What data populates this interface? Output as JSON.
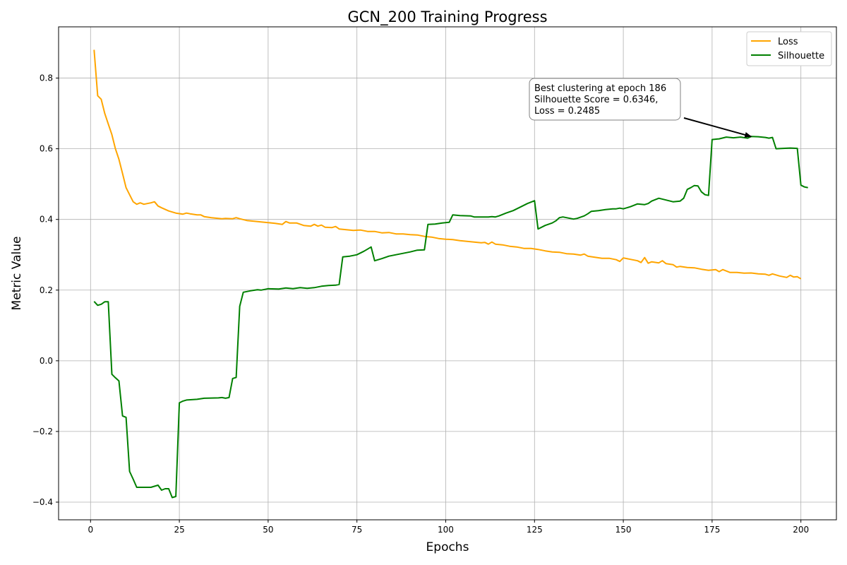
{
  "chart_data": {
    "type": "line",
    "title": "GCN_200 Training Progress",
    "xlabel": "Epochs",
    "ylabel": "Metric Value",
    "xlim": [
      -9,
      210
    ],
    "ylim": [
      -0.45,
      0.945
    ],
    "xticks": [
      0,
      25,
      50,
      75,
      100,
      125,
      150,
      175,
      200
    ],
    "yticks": [
      -0.4,
      -0.2,
      0.0,
      0.2,
      0.4,
      0.6,
      0.8
    ],
    "xtick_labels": [
      "0",
      "25",
      "50",
      "75",
      "100",
      "125",
      "150",
      "175",
      "200"
    ],
    "ytick_labels": [
      "−0.4",
      "−0.2",
      "0.0",
      "0.2",
      "0.4",
      "0.6",
      "0.8"
    ],
    "grid": true,
    "legend_position": "top-right",
    "series": [
      {
        "name": "Loss",
        "color": "#ffa500",
        "points": [
          [
            1,
            0.88
          ],
          [
            2,
            0.75
          ],
          [
            3,
            0.74
          ],
          [
            4,
            0.7
          ],
          [
            5,
            0.67
          ],
          [
            6,
            0.64
          ],
          [
            7,
            0.6
          ],
          [
            8,
            0.57
          ],
          [
            9,
            0.53
          ],
          [
            10,
            0.49
          ],
          [
            11,
            0.47
          ],
          [
            12,
            0.45
          ],
          [
            13,
            0.443
          ],
          [
            14,
            0.447
          ],
          [
            15,
            0.443
          ],
          [
            16,
            0.445
          ],
          [
            17,
            0.447
          ],
          [
            18,
            0.45
          ],
          [
            19,
            0.438
          ],
          [
            20,
            0.433
          ],
          [
            22,
            0.424
          ],
          [
            24,
            0.418
          ],
          [
            26,
            0.415
          ],
          [
            27,
            0.418
          ],
          [
            28,
            0.416
          ],
          [
            30,
            0.413
          ],
          [
            31,
            0.413
          ],
          [
            32,
            0.408
          ],
          [
            34,
            0.405
          ],
          [
            36,
            0.403
          ],
          [
            37,
            0.402
          ],
          [
            38,
            0.403
          ],
          [
            40,
            0.402
          ],
          [
            41,
            0.405
          ],
          [
            42,
            0.402
          ],
          [
            44,
            0.397
          ],
          [
            46,
            0.395
          ],
          [
            48,
            0.393
          ],
          [
            50,
            0.391
          ],
          [
            52,
            0.389
          ],
          [
            54,
            0.386
          ],
          [
            55,
            0.394
          ],
          [
            56,
            0.39
          ],
          [
            58,
            0.39
          ],
          [
            60,
            0.383
          ],
          [
            62,
            0.381
          ],
          [
            63,
            0.386
          ],
          [
            64,
            0.381
          ],
          [
            65,
            0.384
          ],
          [
            66,
            0.378
          ],
          [
            68,
            0.377
          ],
          [
            69,
            0.38
          ],
          [
            70,
            0.373
          ],
          [
            72,
            0.371
          ],
          [
            74,
            0.369
          ],
          [
            76,
            0.37
          ],
          [
            78,
            0.366
          ],
          [
            80,
            0.366
          ],
          [
            82,
            0.362
          ],
          [
            84,
            0.363
          ],
          [
            86,
            0.359
          ],
          [
            88,
            0.359
          ],
          [
            90,
            0.357
          ],
          [
            92,
            0.356
          ],
          [
            94,
            0.352
          ],
          [
            96,
            0.35
          ],
          [
            98,
            0.346
          ],
          [
            100,
            0.344
          ],
          [
            102,
            0.343
          ],
          [
            104,
            0.34
          ],
          [
            106,
            0.338
          ],
          [
            108,
            0.336
          ],
          [
            110,
            0.334
          ],
          [
            111,
            0.335
          ],
          [
            112,
            0.33
          ],
          [
            113,
            0.336
          ],
          [
            114,
            0.33
          ],
          [
            116,
            0.328
          ],
          [
            118,
            0.324
          ],
          [
            120,
            0.322
          ],
          [
            122,
            0.318
          ],
          [
            124,
            0.318
          ],
          [
            126,
            0.315
          ],
          [
            128,
            0.311
          ],
          [
            130,
            0.308
          ],
          [
            132,
            0.307
          ],
          [
            134,
            0.303
          ],
          [
            136,
            0.302
          ],
          [
            138,
            0.299
          ],
          [
            139,
            0.302
          ],
          [
            140,
            0.296
          ],
          [
            142,
            0.293
          ],
          [
            144,
            0.29
          ],
          [
            146,
            0.29
          ],
          [
            148,
            0.286
          ],
          [
            149,
            0.281
          ],
          [
            150,
            0.291
          ],
          [
            152,
            0.287
          ],
          [
            154,
            0.283
          ],
          [
            155,
            0.278
          ],
          [
            156,
            0.292
          ],
          [
            157,
            0.276
          ],
          [
            158,
            0.28
          ],
          [
            160,
            0.277
          ],
          [
            161,
            0.283
          ],
          [
            162,
            0.275
          ],
          [
            164,
            0.272
          ],
          [
            165,
            0.265
          ],
          [
            166,
            0.267
          ],
          [
            168,
            0.264
          ],
          [
            170,
            0.263
          ],
          [
            172,
            0.259
          ],
          [
            174,
            0.256
          ],
          [
            176,
            0.258
          ],
          [
            177,
            0.252
          ],
          [
            178,
            0.258
          ],
          [
            180,
            0.25
          ],
          [
            182,
            0.25
          ],
          [
            184,
            0.248
          ],
          [
            186,
            0.2485
          ],
          [
            188,
            0.246
          ],
          [
            190,
            0.245
          ],
          [
            191,
            0.242
          ],
          [
            192,
            0.246
          ],
          [
            194,
            0.24
          ],
          [
            196,
            0.236
          ],
          [
            197,
            0.242
          ],
          [
            198,
            0.237
          ],
          [
            199,
            0.238
          ],
          [
            200,
            0.232
          ]
        ]
      },
      {
        "name": "Silhouette",
        "color": "#008000",
        "points": [
          [
            1,
            0.168
          ],
          [
            2,
            0.157
          ],
          [
            3,
            0.16
          ],
          [
            4,
            0.167
          ],
          [
            5,
            0.167
          ],
          [
            6,
            -0.038
          ],
          [
            7,
            -0.048
          ],
          [
            8,
            -0.057
          ],
          [
            9,
            -0.156
          ],
          [
            10,
            -0.16
          ],
          [
            11,
            -0.313
          ],
          [
            12,
            -0.335
          ],
          [
            13,
            -0.358
          ],
          [
            15,
            -0.358
          ],
          [
            17,
            -0.358
          ],
          [
            19,
            -0.352
          ],
          [
            20,
            -0.366
          ],
          [
            21,
            -0.362
          ],
          [
            22,
            -0.362
          ],
          [
            23,
            -0.387
          ],
          [
            24,
            -0.384
          ],
          [
            25,
            -0.119
          ],
          [
            26,
            -0.114
          ],
          [
            27,
            -0.111
          ],
          [
            30,
            -0.109
          ],
          [
            32,
            -0.106
          ],
          [
            36,
            -0.105
          ],
          [
            37,
            -0.104
          ],
          [
            38,
            -0.106
          ],
          [
            39,
            -0.104
          ],
          [
            40,
            -0.05
          ],
          [
            41,
            -0.047
          ],
          [
            42,
            0.154
          ],
          [
            43,
            0.194
          ],
          [
            45,
            0.198
          ],
          [
            47,
            0.201
          ],
          [
            48,
            0.2
          ],
          [
            50,
            0.204
          ],
          [
            53,
            0.203
          ],
          [
            55,
            0.206
          ],
          [
            57,
            0.204
          ],
          [
            59,
            0.207
          ],
          [
            61,
            0.205
          ],
          [
            63,
            0.207
          ],
          [
            65,
            0.211
          ],
          [
            67,
            0.213
          ],
          [
            69,
            0.214
          ],
          [
            70,
            0.216
          ],
          [
            71,
            0.294
          ],
          [
            73,
            0.296
          ],
          [
            75,
            0.3
          ],
          [
            76,
            0.305
          ],
          [
            77,
            0.31
          ],
          [
            78,
            0.316
          ],
          [
            79,
            0.322
          ],
          [
            80,
            0.283
          ],
          [
            82,
            0.289
          ],
          [
            84,
            0.296
          ],
          [
            86,
            0.3
          ],
          [
            88,
            0.304
          ],
          [
            90,
            0.308
          ],
          [
            92,
            0.313
          ],
          [
            94,
            0.314
          ],
          [
            95,
            0.386
          ],
          [
            97,
            0.387
          ],
          [
            99,
            0.39
          ],
          [
            101,
            0.392
          ],
          [
            102,
            0.413
          ],
          [
            104,
            0.411
          ],
          [
            107,
            0.41
          ],
          [
            108,
            0.407
          ],
          [
            110,
            0.407
          ],
          [
            112,
            0.407
          ],
          [
            113,
            0.408
          ],
          [
            114,
            0.407
          ],
          [
            115,
            0.41
          ],
          [
            117,
            0.418
          ],
          [
            119,
            0.425
          ],
          [
            121,
            0.435
          ],
          [
            123,
            0.445
          ],
          [
            125,
            0.453
          ],
          [
            126,
            0.373
          ],
          [
            128,
            0.383
          ],
          [
            130,
            0.39
          ],
          [
            131,
            0.396
          ],
          [
            132,
            0.405
          ],
          [
            133,
            0.407
          ],
          [
            135,
            0.403
          ],
          [
            136,
            0.401
          ],
          [
            137,
            0.403
          ],
          [
            139,
            0.41
          ],
          [
            140,
            0.416
          ],
          [
            141,
            0.423
          ],
          [
            143,
            0.425
          ],
          [
            145,
            0.428
          ],
          [
            147,
            0.43
          ],
          [
            148,
            0.43
          ],
          [
            149,
            0.432
          ],
          [
            150,
            0.43
          ],
          [
            152,
            0.436
          ],
          [
            153,
            0.44
          ],
          [
            154,
            0.444
          ],
          [
            155,
            0.443
          ],
          [
            156,
            0.442
          ],
          [
            157,
            0.445
          ],
          [
            158,
            0.452
          ],
          [
            160,
            0.46
          ],
          [
            162,
            0.455
          ],
          [
            164,
            0.45
          ],
          [
            166,
            0.452
          ],
          [
            167,
            0.46
          ],
          [
            168,
            0.485
          ],
          [
            169,
            0.49
          ],
          [
            170,
            0.496
          ],
          [
            171,
            0.495
          ],
          [
            172,
            0.478
          ],
          [
            173,
            0.47
          ],
          [
            174,
            0.468
          ],
          [
            175,
            0.626
          ],
          [
            177,
            0.628
          ],
          [
            179,
            0.633
          ],
          [
            181,
            0.631
          ],
          [
            183,
            0.633
          ],
          [
            185,
            0.63
          ],
          [
            186,
            0.6346
          ],
          [
            188,
            0.634
          ],
          [
            190,
            0.632
          ],
          [
            191,
            0.63
          ],
          [
            192,
            0.632
          ],
          [
            193,
            0.6
          ],
          [
            195,
            0.601
          ],
          [
            197,
            0.602
          ],
          [
            199,
            0.601
          ],
          [
            200,
            0.497
          ],
          [
            201,
            0.492
          ],
          [
            202,
            0.49
          ]
        ]
      }
    ],
    "annotation": {
      "lines": [
        "Best clustering at epoch 186",
        "Silhouette Score = 0.6346,",
        "Loss = 0.2485"
      ],
      "text_at": [
        125,
        0.69
      ],
      "arrow_to": [
        186,
        0.6346
      ]
    }
  }
}
